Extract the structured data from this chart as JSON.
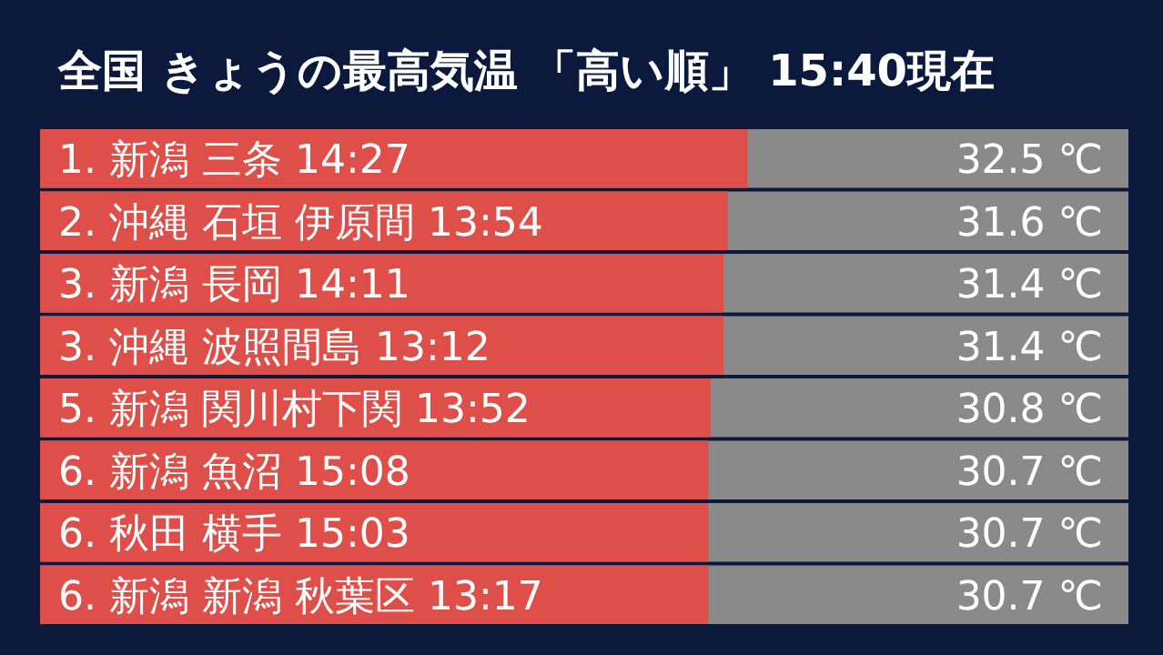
{
  "chart_data": {
    "type": "bar",
    "orientation": "horizontal",
    "title": "全国 きょうの最高気温 「高い順」 15:40現在",
    "categories": [
      "1. 新潟 三条 14:27",
      "2. 沖縄 石垣 伊原間 13:54",
      "3. 新潟 長岡 14:11",
      "3. 沖縄 波照間島 13:12",
      "5. 新潟 関川村下関 13:52",
      "6. 新潟 魚沼 15:08",
      "6. 秋田 横手 15:03",
      "6. 新潟 新潟 秋葉区 13:17"
    ],
    "values": [
      32.5,
      31.6,
      31.4,
      31.4,
      30.8,
      30.7,
      30.7,
      30.7
    ],
    "value_labels": [
      "32.5 ℃",
      "31.6 ℃",
      "31.4 ℃",
      "31.4 ℃",
      "30.8 ℃",
      "30.7 ℃",
      "30.7 ℃",
      "30.7 ℃"
    ],
    "color": "#df4f4a"
  }
}
